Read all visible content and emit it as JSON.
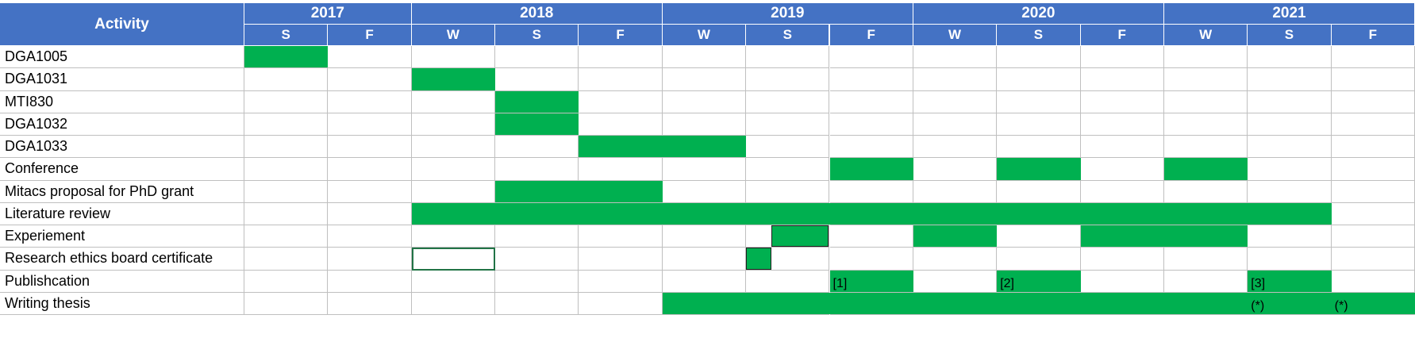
{
  "chart_data": {
    "type": "table",
    "first_column_header": "Activity",
    "years": [
      {
        "label": "2017",
        "span": 2
      },
      {
        "label": "2018",
        "span": 3
      },
      {
        "label": "2019",
        "span": 3
      },
      {
        "label": "2020",
        "span": 3
      },
      {
        "label": "2021",
        "span": 3
      }
    ],
    "semesters": [
      "S",
      "F",
      "W",
      "S",
      "F",
      "W",
      "S",
      "F",
      "W",
      "S",
      "F",
      "W",
      "S",
      "F"
    ],
    "activities": [
      {
        "label": "DGA1005",
        "spans": [
          [
            0,
            0
          ]
        ]
      },
      {
        "label": "DGA1031",
        "spans": [
          [
            2,
            2
          ]
        ]
      },
      {
        "label": "MTI830",
        "spans": [
          [
            3,
            3
          ]
        ]
      },
      {
        "label": "DGA1032",
        "spans": [
          [
            3,
            3
          ]
        ]
      },
      {
        "label": "DGA1033",
        "spans": [
          [
            4,
            5
          ]
        ]
      },
      {
        "label": "Conference",
        "spans": [
          [
            7,
            7
          ],
          [
            9,
            9
          ],
          [
            11,
            11
          ]
        ]
      },
      {
        "label": "Mitacs proposal for PhD grant",
        "spans": [
          [
            3,
            4
          ]
        ]
      },
      {
        "label": "Literature review",
        "spans": [
          [
            2,
            12
          ]
        ]
      },
      {
        "label": "Experiement",
        "spans": [
          [
            6.3,
            6.99
          ],
          [
            8,
            8
          ],
          [
            10,
            11
          ]
        ]
      },
      {
        "label": "Research ethics board certificate",
        "spans": [
          [
            6,
            6.3
          ]
        ]
      },
      {
        "label": "Publishcation",
        "spans": [
          [
            7,
            7
          ],
          [
            9,
            9
          ],
          [
            12,
            12
          ]
        ]
      },
      {
        "label": "Writing thesis",
        "spans": [
          [
            5,
            13
          ]
        ]
      }
    ],
    "annotations": [
      {
        "row": 10,
        "col": 7,
        "text": "[1]"
      },
      {
        "row": 10,
        "col": 9,
        "text": "[2]"
      },
      {
        "row": 10,
        "col": 12,
        "text": "[3]"
      },
      {
        "row": 11,
        "col": 12,
        "text": "(*)"
      },
      {
        "row": 11,
        "col": 13,
        "text": "(*)"
      }
    ],
    "selected_cell": {
      "row": 9,
      "col": 2
    }
  },
  "colors": {
    "header_bg": "#4472c4",
    "header_text": "#ffffff",
    "bar": "#00b050",
    "gridline": "#bfbfbf",
    "selection": "#217346"
  }
}
